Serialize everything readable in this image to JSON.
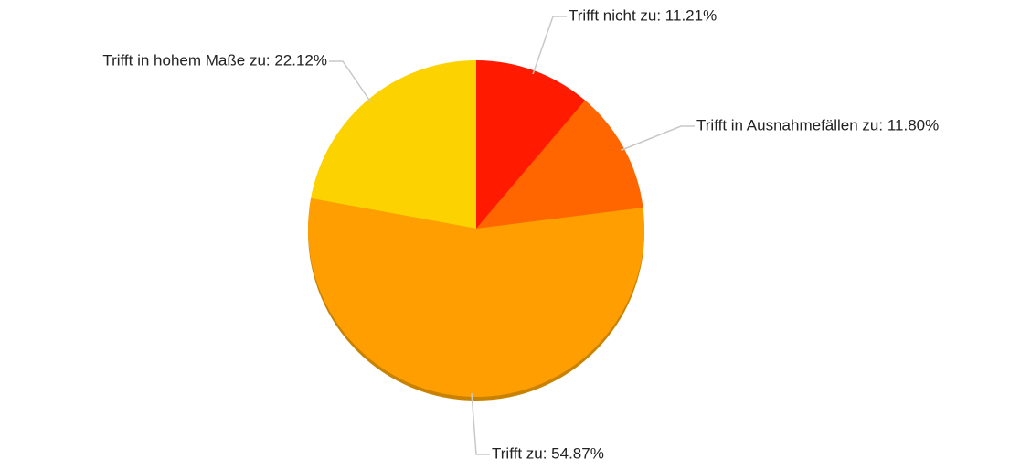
{
  "chart_data": {
    "type": "pie",
    "values": [
      11.21,
      11.8,
      54.87,
      22.12
    ],
    "value_labels": [
      "Trifft nicht zu: 11.21%",
      "Trifft in Ausnahmefällen zu: 11.80%",
      "Trifft zu: 54.87%",
      "Trifft in hohem Maße zu: 22.12%"
    ],
    "colors": [
      "#ff1a00",
      "#ff6600",
      "#ff9e00",
      "#fcd200"
    ]
  }
}
